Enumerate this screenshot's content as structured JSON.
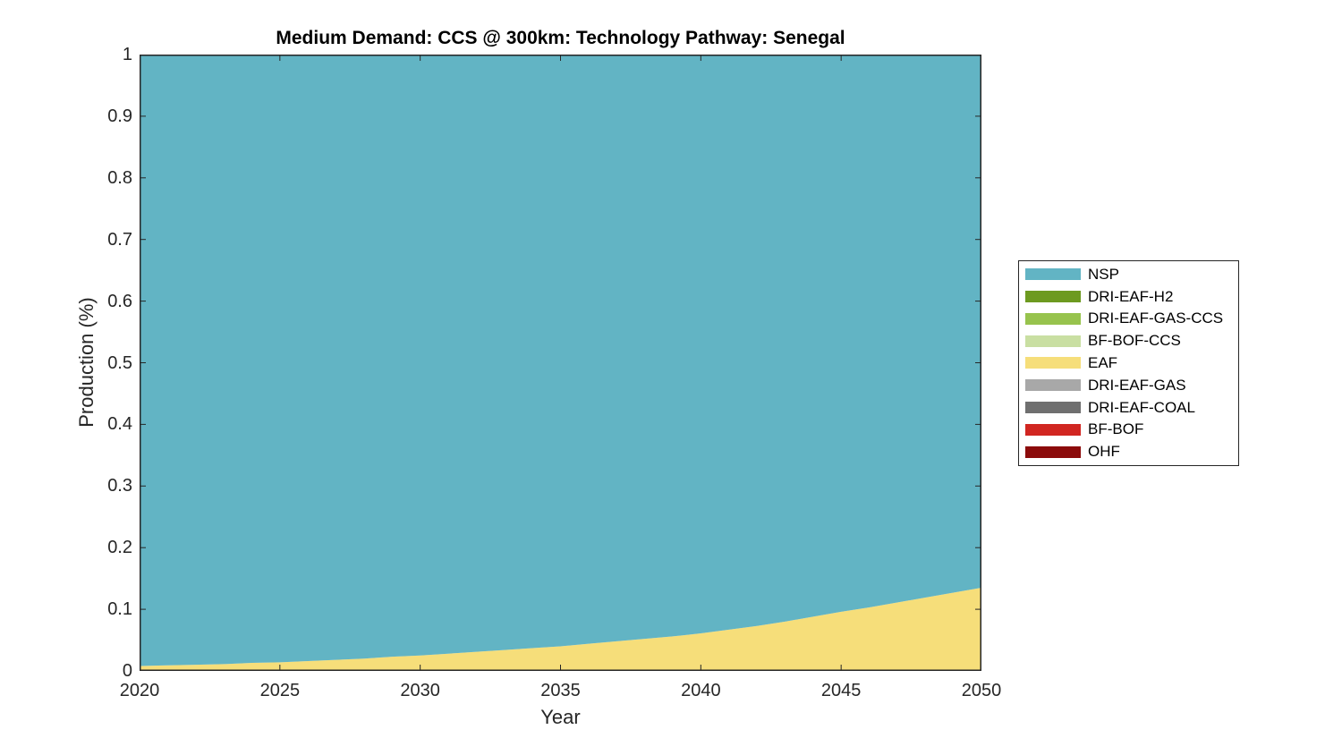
{
  "chart_data": {
    "type": "area",
    "stacked": true,
    "title": "Medium Demand: CCS @ 300km: Technology Pathway: Senegal",
    "xlabel": "Year",
    "ylabel": "Production (%)",
    "xlim": [
      2020,
      2050
    ],
    "ylim": [
      0,
      1
    ],
    "xticks": [
      2020,
      2025,
      2030,
      2035,
      2040,
      2045,
      2050
    ],
    "yticks": [
      0,
      0.1,
      0.2,
      0.3,
      0.4,
      0.5,
      0.6,
      0.7,
      0.8,
      0.9,
      1
    ],
    "grid": false,
    "legend_position": "right-outside",
    "axis_color": "#262626",
    "background_color": "#FFFFFF",
    "x": [
      2020,
      2021,
      2022,
      2023,
      2024,
      2025,
      2026,
      2027,
      2028,
      2029,
      2030,
      2031,
      2032,
      2033,
      2034,
      2035,
      2036,
      2037,
      2038,
      2039,
      2040,
      2041,
      2042,
      2043,
      2044,
      2045,
      2046,
      2047,
      2048,
      2049,
      2050
    ],
    "series": [
      {
        "name": "NSP",
        "color": "#62B4C4",
        "values": [
          0.992,
          0.991,
          0.99,
          0.989,
          0.987,
          0.986,
          0.984,
          0.982,
          0.98,
          0.977,
          0.975,
          0.972,
          0.969,
          0.966,
          0.963,
          0.96,
          0.956,
          0.952,
          0.948,
          0.944,
          0.939,
          0.933,
          0.927,
          0.92,
          0.912,
          0.904,
          0.897,
          0.889,
          0.881,
          0.873,
          0.865
        ]
      },
      {
        "name": "DRI-EAF-H2",
        "color": "#6D9A20",
        "values": [
          0,
          0,
          0,
          0,
          0,
          0,
          0,
          0,
          0,
          0,
          0,
          0,
          0,
          0,
          0,
          0,
          0,
          0,
          0,
          0,
          0,
          0,
          0,
          0,
          0,
          0,
          0,
          0,
          0,
          0,
          0
        ]
      },
      {
        "name": "DRI-EAF-GAS-CCS",
        "color": "#97C34D",
        "values": [
          0,
          0,
          0,
          0,
          0,
          0,
          0,
          0,
          0,
          0,
          0,
          0,
          0,
          0,
          0,
          0,
          0,
          0,
          0,
          0,
          0,
          0,
          0,
          0,
          0,
          0,
          0,
          0,
          0,
          0,
          0
        ]
      },
      {
        "name": "BF-BOF-CCS",
        "color": "#C9DFA2",
        "values": [
          0,
          0,
          0,
          0,
          0,
          0,
          0,
          0,
          0,
          0,
          0,
          0,
          0,
          0,
          0,
          0,
          0,
          0,
          0,
          0,
          0,
          0,
          0,
          0,
          0,
          0,
          0,
          0,
          0,
          0,
          0
        ]
      },
      {
        "name": "EAF",
        "color": "#F6DE7A",
        "values": [
          0.008,
          0.009,
          0.01,
          0.011,
          0.013,
          0.014,
          0.016,
          0.018,
          0.02,
          0.023,
          0.025,
          0.028,
          0.031,
          0.034,
          0.037,
          0.04,
          0.044,
          0.048,
          0.052,
          0.056,
          0.061,
          0.067,
          0.073,
          0.08,
          0.088,
          0.096,
          0.103,
          0.111,
          0.119,
          0.127,
          0.135
        ]
      },
      {
        "name": "DRI-EAF-GAS",
        "color": "#A8A8A8",
        "values": [
          0,
          0,
          0,
          0,
          0,
          0,
          0,
          0,
          0,
          0,
          0,
          0,
          0,
          0,
          0,
          0,
          0,
          0,
          0,
          0,
          0,
          0,
          0,
          0,
          0,
          0,
          0,
          0,
          0,
          0,
          0
        ]
      },
      {
        "name": "DRI-EAF-COAL",
        "color": "#6F6F6F",
        "values": [
          0,
          0,
          0,
          0,
          0,
          0,
          0,
          0,
          0,
          0,
          0,
          0,
          0,
          0,
          0,
          0,
          0,
          0,
          0,
          0,
          0,
          0,
          0,
          0,
          0,
          0,
          0,
          0,
          0,
          0,
          0
        ]
      },
      {
        "name": "BF-BOF",
        "color": "#D12621",
        "values": [
          0,
          0,
          0,
          0,
          0,
          0,
          0,
          0,
          0,
          0,
          0,
          0,
          0,
          0,
          0,
          0,
          0,
          0,
          0,
          0,
          0,
          0,
          0,
          0,
          0,
          0,
          0,
          0,
          0,
          0,
          0
        ]
      },
      {
        "name": "OHF",
        "color": "#8C0B0B",
        "values": [
          0,
          0,
          0,
          0,
          0,
          0,
          0,
          0,
          0,
          0,
          0,
          0,
          0,
          0,
          0,
          0,
          0,
          0,
          0,
          0,
          0,
          0,
          0,
          0,
          0,
          0,
          0,
          0,
          0,
          0,
          0
        ]
      }
    ]
  }
}
